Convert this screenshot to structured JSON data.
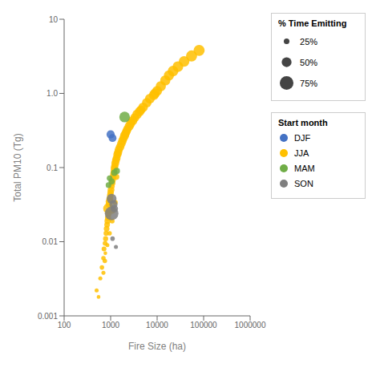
{
  "chart_data": {
    "type": "scatter",
    "title": "",
    "xlabel": "Fire Size (ha)",
    "ylabel": "Total PM10 (Tg)",
    "log": true,
    "grid": false,
    "legend": "right",
    "xlim": [
      100,
      1000000
    ],
    "ylim": [
      0.001,
      10
    ],
    "xticks": [
      100,
      1000,
      10000,
      100000,
      1000000
    ],
    "yticks": [
      0.001,
      0.01,
      0.1,
      {
        "value": 1,
        "label": "1.0"
      },
      10
    ],
    "size_legend": {
      "title": "% Time Emitting",
      "values": [
        {
          "value": 25,
          "label": "25%"
        },
        {
          "value": 50,
          "label": "50%"
        },
        {
          "value": 75,
          "label": "75%"
        }
      ]
    },
    "legend_title": "Start month",
    "series": [
      {
        "name": "DJF",
        "color": "#4472C4",
        "x": [
          1000,
          1100
        ],
        "values": [
          0.28,
          0.25
        ],
        "sizes": [
          40,
          38
        ]
      },
      {
        "name": "JJA",
        "color": "#FFC000",
        "x": [
          500,
          550,
          600,
          650,
          700,
          700,
          720,
          750,
          760,
          780,
          800,
          820,
          840,
          860,
          880,
          900,
          900,
          920,
          940,
          960,
          980,
          1000,
          1020,
          1050,
          1080,
          1100,
          1130,
          1150,
          1180,
          1200,
          1230,
          1260,
          1300,
          1350,
          1400,
          1450,
          1500,
          1600,
          1700,
          1800,
          1900,
          2000,
          2100,
          2200,
          2300,
          2500,
          2700,
          3000,
          3300,
          3700,
          4200,
          5000,
          6000,
          7000,
          8500,
          10000,
          12000,
          15000,
          18000,
          22000,
          28000,
          38000,
          55000,
          80000,
          950,
          1080,
          1250,
          850,
          770,
          1100,
          1320,
          2800,
          4500,
          9000
        ],
        "values": [
          0.0022,
          0.0018,
          0.0032,
          0.0045,
          0.0038,
          0.006,
          0.008,
          0.0055,
          0.0095,
          0.011,
          0.013,
          0.015,
          0.017,
          0.019,
          0.021,
          0.024,
          0.028,
          0.032,
          0.035,
          0.038,
          0.042,
          0.046,
          0.05,
          0.056,
          0.062,
          0.068,
          0.075,
          0.082,
          0.09,
          0.098,
          0.105,
          0.115,
          0.125,
          0.135,
          0.15,
          0.16,
          0.175,
          0.19,
          0.21,
          0.23,
          0.25,
          0.27,
          0.29,
          0.31,
          0.33,
          0.36,
          0.39,
          0.43,
          0.47,
          0.52,
          0.57,
          0.65,
          0.75,
          0.85,
          0.95,
          1.08,
          1.25,
          1.5,
          1.75,
          2.0,
          2.3,
          2.7,
          3.2,
          3.8,
          0.013,
          0.019,
          0.034,
          0.009,
          0.007,
          0.026,
          0.075,
          0.41,
          0.6,
          1.0
        ],
        "sizes": [
          15,
          12,
          15,
          18,
          15,
          18,
          20,
          18,
          20,
          22,
          22,
          25,
          25,
          28,
          28,
          30,
          55,
          32,
          35,
          32,
          30,
          30,
          32,
          28,
          30,
          30,
          32,
          30,
          30,
          35,
          35,
          38,
          38,
          38,
          40,
          40,
          40,
          42,
          42,
          42,
          42,
          45,
          42,
          42,
          42,
          45,
          45,
          45,
          45,
          48,
          48,
          48,
          48,
          50,
          50,
          50,
          52,
          52,
          52,
          55,
          55,
          55,
          58,
          58,
          18,
          20,
          22,
          15,
          12,
          25,
          28,
          38,
          45,
          50
        ]
      },
      {
        "name": "MAM",
        "color": "#70AD47",
        "x": [
          1050,
          1200,
          1350,
          2000,
          900,
          950
        ],
        "values": [
          0.065,
          0.085,
          0.09,
          0.48,
          0.058,
          0.072
        ],
        "sizes": [
          28,
          30,
          30,
          55,
          25,
          25
        ]
      },
      {
        "name": "SON",
        "color": "#7F7F7F",
        "x": [
          1050,
          1150,
          1200,
          1100,
          1300,
          1050
        ],
        "values": [
          0.038,
          0.032,
          0.028,
          0.011,
          0.0085,
          0.024
        ],
        "sizes": [
          50,
          40,
          35,
          18,
          15,
          75
        ]
      }
    ]
  }
}
